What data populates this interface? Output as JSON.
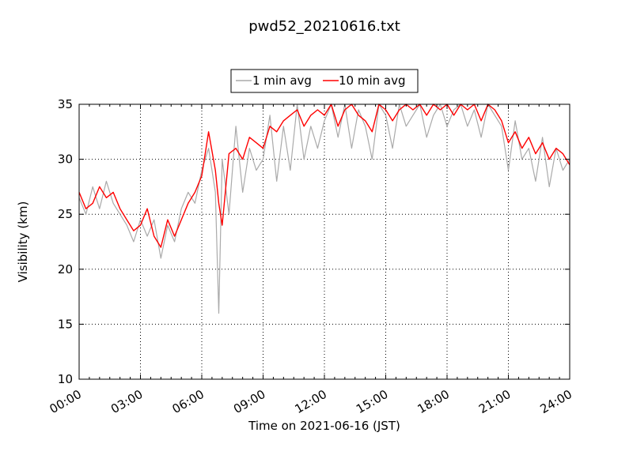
{
  "chart_data": {
    "type": "line",
    "title": "pwd52_20210616.txt",
    "xlabel": "Time on 2021-06-16 (JST)",
    "ylabel": "Visibility (km)",
    "xlim": [
      "00:00",
      "24:00"
    ],
    "ylim": [
      10,
      35
    ],
    "x_ticks": [
      "00:00",
      "03:00",
      "06:00",
      "09:00",
      "12:00",
      "15:00",
      "18:00",
      "21:00",
      "24:00"
    ],
    "y_ticks": [
      "10",
      "15",
      "20",
      "25",
      "30",
      "35"
    ],
    "grid": true,
    "legend_placement": "top-center",
    "colors": {
      "1 min avg": "#aaaaaa",
      "10 min avg": "#ff0000"
    },
    "series": [
      {
        "name": "1 min avg",
        "x": [
          "00:00",
          "00:20",
          "00:40",
          "01:00",
          "01:20",
          "01:40",
          "02:00",
          "02:20",
          "02:40",
          "03:00",
          "03:20",
          "03:40",
          "04:00",
          "04:20",
          "04:40",
          "05:00",
          "05:20",
          "05:40",
          "06:00",
          "06:20",
          "06:40",
          "06:50",
          "07:00",
          "07:20",
          "07:40",
          "08:00",
          "08:20",
          "08:40",
          "09:00",
          "09:20",
          "09:40",
          "10:00",
          "10:20",
          "10:40",
          "11:00",
          "11:20",
          "11:40",
          "12:00",
          "12:20",
          "12:40",
          "13:00",
          "13:20",
          "13:40",
          "14:00",
          "14:20",
          "14:40",
          "15:00",
          "15:20",
          "15:40",
          "16:00",
          "16:20",
          "16:40",
          "17:00",
          "17:20",
          "17:40",
          "18:00",
          "18:20",
          "18:40",
          "19:00",
          "19:20",
          "19:40",
          "20:00",
          "20:20",
          "20:40",
          "21:00",
          "21:20",
          "21:40",
          "22:00",
          "22:20",
          "22:40",
          "23:00",
          "23:20",
          "23:40",
          "24:00"
        ],
        "values": [
          26.5,
          25.0,
          27.5,
          25.5,
          28.0,
          26.0,
          25.0,
          24.0,
          22.5,
          24.5,
          23.0,
          24.5,
          21.0,
          24.0,
          22.5,
          25.5,
          27.0,
          26.0,
          29.0,
          31.0,
          27.0,
          16.0,
          30.0,
          25.0,
          33.0,
          27.0,
          31.0,
          29.0,
          30.0,
          34.0,
          28.0,
          33.0,
          29.0,
          35.0,
          30.0,
          33.0,
          31.0,
          33.5,
          35.0,
          32.0,
          35.0,
          31.0,
          34.5,
          33.0,
          30.0,
          35.0,
          34.0,
          31.0,
          35.0,
          33.0,
          34.0,
          35.0,
          32.0,
          34.0,
          35.0,
          33.0,
          34.5,
          35.0,
          33.0,
          34.5,
          32.0,
          35.0,
          34.0,
          33.0,
          29.0,
          33.5,
          30.0,
          31.0,
          28.0,
          32.0,
          27.5,
          31.0,
          29.0,
          30.0
        ]
      },
      {
        "name": "10 min avg",
        "x": [
          "00:00",
          "00:20",
          "00:40",
          "01:00",
          "01:20",
          "01:40",
          "02:00",
          "02:20",
          "02:40",
          "03:00",
          "03:20",
          "03:40",
          "04:00",
          "04:20",
          "04:40",
          "05:00",
          "05:20",
          "05:40",
          "06:00",
          "06:20",
          "06:40",
          "06:50",
          "07:00",
          "07:20",
          "07:40",
          "08:00",
          "08:20",
          "08:40",
          "09:00",
          "09:20",
          "09:40",
          "10:00",
          "10:20",
          "10:40",
          "11:00",
          "11:20",
          "11:40",
          "12:00",
          "12:20",
          "12:40",
          "13:00",
          "13:20",
          "13:40",
          "14:00",
          "14:20",
          "14:40",
          "15:00",
          "15:20",
          "15:40",
          "16:00",
          "16:20",
          "16:40",
          "17:00",
          "17:20",
          "17:40",
          "18:00",
          "18:20",
          "18:40",
          "19:00",
          "19:20",
          "19:40",
          "20:00",
          "20:20",
          "20:40",
          "21:00",
          "21:20",
          "21:40",
          "22:00",
          "22:20",
          "22:40",
          "23:00",
          "23:20",
          "23:40",
          "24:00"
        ],
        "values": [
          27.0,
          25.5,
          26.0,
          27.5,
          26.5,
          27.0,
          25.5,
          24.5,
          23.5,
          24.0,
          25.5,
          23.0,
          22.0,
          24.5,
          23.0,
          24.5,
          26.0,
          27.0,
          28.5,
          32.5,
          29.0,
          26.0,
          24.0,
          30.5,
          31.0,
          30.0,
          32.0,
          31.5,
          31.0,
          33.0,
          32.5,
          33.5,
          34.0,
          34.5,
          33.0,
          34.0,
          34.5,
          34.0,
          35.0,
          33.0,
          34.5,
          35.0,
          34.0,
          33.5,
          32.5,
          35.0,
          34.5,
          33.5,
          34.5,
          35.0,
          34.5,
          35.0,
          34.0,
          35.0,
          34.5,
          35.0,
          34.0,
          35.0,
          34.5,
          35.0,
          33.5,
          35.0,
          34.5,
          33.5,
          31.5,
          32.5,
          31.0,
          32.0,
          30.5,
          31.5,
          30.0,
          31.0,
          30.5,
          29.5
        ]
      }
    ]
  }
}
